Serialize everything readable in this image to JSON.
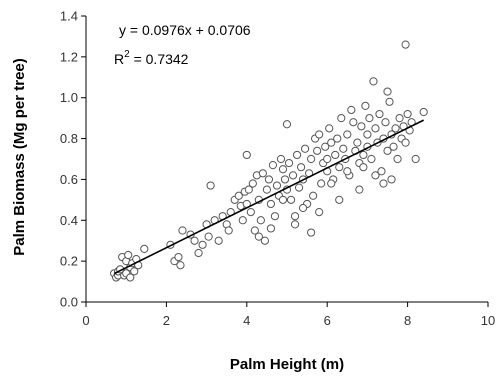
{
  "chart_data": {
    "type": "scatter",
    "title": "",
    "xlabel": "Palm Height (m)",
    "ylabel": "Palm Biomass (Mg per tree)",
    "xlim": [
      0,
      10
    ],
    "ylim": [
      0,
      1.4
    ],
    "x_ticks": [
      "0",
      "2",
      "4",
      "6",
      "8",
      "10"
    ],
    "y_ticks": [
      "0.0",
      "0.2",
      "0.4",
      "0.6",
      "0.8",
      "1.0",
      "1.2",
      "1.4"
    ],
    "grid": false,
    "legend": "none",
    "annotations": {
      "equation": "y = 0.0976x + 0.0706",
      "r2_prefix": "R",
      "r2_exponent": "2",
      "r2_value": " = 0.7342"
    },
    "trendline": {
      "slope": 0.0976,
      "intercept": 0.0706,
      "x_range": [
        0.7,
        8.4
      ]
    },
    "series": [
      {
        "marker": "open-circle",
        "x": [
          0.7,
          0.75,
          0.8,
          0.8,
          0.85,
          0.9,
          0.95,
          1.0,
          1.0,
          1.05,
          1.1,
          1.1,
          1.15,
          1.2,
          1.25,
          1.3,
          1.45,
          2.1,
          2.2,
          2.3,
          2.35,
          2.4,
          2.6,
          2.7,
          2.8,
          2.9,
          3.0,
          3.05,
          3.1,
          3.2,
          3.3,
          3.4,
          3.5,
          3.55,
          3.6,
          3.7,
          3.8,
          3.85,
          3.9,
          3.95,
          4.0,
          4.0,
          4.05,
          4.1,
          4.15,
          4.2,
          4.25,
          4.3,
          4.35,
          4.4,
          4.45,
          4.5,
          4.55,
          4.6,
          4.65,
          4.7,
          4.75,
          4.8,
          4.85,
          4.9,
          4.95,
          5.0,
          5.0,
          5.05,
          5.1,
          5.15,
          5.2,
          5.25,
          5.3,
          5.35,
          5.4,
          5.45,
          5.5,
          5.55,
          5.6,
          5.65,
          5.7,
          5.75,
          5.8,
          5.85,
          5.9,
          5.95,
          6.0,
          6.0,
          6.05,
          6.1,
          6.15,
          6.2,
          6.25,
          6.3,
          6.35,
          6.4,
          6.45,
          6.5,
          6.55,
          6.6,
          6.65,
          6.7,
          6.75,
          6.8,
          6.85,
          6.9,
          6.95,
          7.0,
          7.0,
          7.05,
          7.1,
          7.15,
          7.2,
          7.25,
          7.3,
          7.35,
          7.4,
          7.45,
          7.5,
          7.55,
          7.6,
          7.65,
          7.7,
          7.75,
          7.8,
          7.85,
          7.9,
          7.95,
          8.0,
          8.05,
          8.1,
          8.2,
          8.4,
          4.3,
          4.6,
          5.2,
          5.6,
          6.1,
          6.3,
          6.8,
          7.2,
          7.6,
          6.5,
          5.8,
          4.9,
          5.4,
          6.9,
          7.4
        ],
        "y": [
          0.14,
          0.12,
          0.13,
          0.15,
          0.16,
          0.22,
          0.13,
          0.2,
          0.14,
          0.23,
          0.17,
          0.12,
          0.19,
          0.15,
          0.21,
          0.18,
          0.26,
          0.28,
          0.2,
          0.22,
          0.18,
          0.35,
          0.33,
          0.3,
          0.24,
          0.28,
          0.38,
          0.32,
          0.57,
          0.4,
          0.3,
          0.42,
          0.38,
          0.35,
          0.44,
          0.5,
          0.52,
          0.47,
          0.4,
          0.54,
          0.48,
          0.72,
          0.55,
          0.44,
          0.58,
          0.35,
          0.62,
          0.5,
          0.4,
          0.63,
          0.3,
          0.55,
          0.6,
          0.48,
          0.67,
          0.42,
          0.57,
          0.52,
          0.7,
          0.65,
          0.6,
          0.55,
          0.87,
          0.68,
          0.5,
          0.62,
          0.42,
          0.72,
          0.56,
          0.66,
          0.6,
          0.75,
          0.48,
          0.63,
          0.7,
          0.52,
          0.8,
          0.74,
          0.82,
          0.58,
          0.68,
          0.76,
          0.64,
          0.7,
          0.85,
          0.78,
          0.6,
          0.72,
          0.8,
          0.66,
          0.9,
          0.75,
          0.7,
          0.82,
          0.62,
          0.94,
          0.88,
          0.74,
          0.78,
          0.68,
          0.86,
          0.72,
          0.96,
          0.82,
          0.76,
          0.9,
          0.7,
          1.08,
          0.85,
          0.78,
          0.92,
          0.64,
          0.8,
          0.88,
          0.74,
          0.98,
          0.82,
          0.76,
          0.85,
          0.7,
          0.9,
          0.8,
          0.86,
          0.78,
          0.92,
          0.84,
          0.88,
          0.7,
          0.93,
          0.32,
          0.36,
          0.38,
          0.34,
          0.58,
          0.5,
          0.55,
          0.62,
          0.6,
          0.64,
          0.44,
          0.5,
          0.46,
          0.66,
          0.58
        ]
      },
      {
        "marker": "open-circle",
        "x": [
          7.5,
          7.95
        ],
        "y": [
          1.03,
          1.26
        ]
      }
    ]
  }
}
